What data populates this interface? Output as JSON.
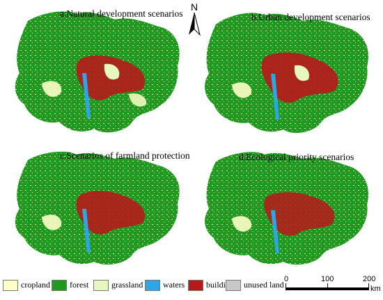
{
  "panels": [
    {
      "id": "a",
      "title": "a.Natural development scenarios"
    },
    {
      "id": "b",
      "title": "b.Urban development scenarios"
    },
    {
      "id": "c",
      "title": "c.Scenarios of farmland protection"
    },
    {
      "id": "d",
      "title": "d.Ecological priority scenarios"
    }
  ],
  "north_arrow": {
    "label": "N"
  },
  "legend": [
    {
      "label": "cropland",
      "color": "#ffffc8"
    },
    {
      "label": "forest",
      "color": "#1f9a1f"
    },
    {
      "label": "grassland",
      "color": "#e6f8c0"
    },
    {
      "label": "waters",
      "color": "#2ea6e6"
    },
    {
      "label": "buildings",
      "color": "#b51a1a"
    },
    {
      "label": "unused land",
      "color": "#c8c8c8"
    }
  ],
  "scale_bar": {
    "ticks": [
      "0",
      "100",
      "200"
    ],
    "unit": "km"
  }
}
